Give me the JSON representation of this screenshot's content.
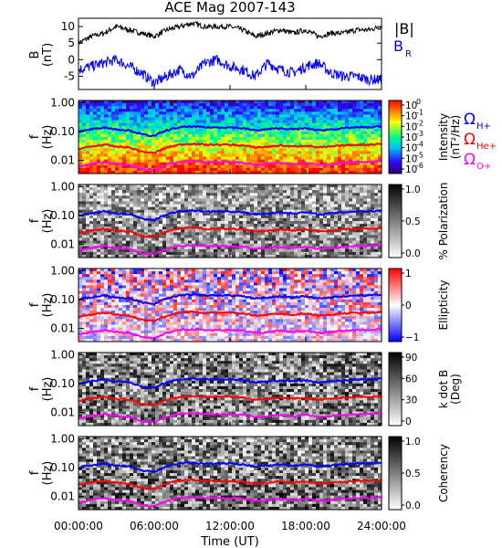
{
  "title": "ACE Mag 2007-143",
  "x_axis": {
    "label": "Time (UT)",
    "ticks": [
      "00:00:00",
      "06:00:00",
      "12:00:00",
      "18:00:00",
      "24:00:00"
    ],
    "range_hours": [
      0,
      24
    ]
  },
  "line_panel": {
    "ylabel": "B",
    "yunit": "(nT)",
    "ylim": [
      -9,
      12.5
    ],
    "yticks": [
      "10",
      "5",
      "0",
      "-5"
    ],
    "legend": {
      "b_mag": "|B|",
      "b_r_main": "B",
      "b_r_sub": "R"
    },
    "colors": {
      "b_mag": "#000000",
      "b_r": "#0000ff"
    }
  },
  "spectro_panels": [
    {
      "ylabel": "f",
      "yunit": "(Hz)",
      "yticks": [
        "1.00",
        "0.10",
        "0.01"
      ],
      "cbar": {
        "label": "Intensity",
        "unit": "(nT²/Hz)",
        "ticks": [
          "10",
          "10",
          "10",
          "10",
          "10",
          "10",
          "10"
        ],
        "tick_exps": [
          "0",
          "-1",
          "-2",
          "-3",
          "-4",
          "-5",
          "-6"
        ],
        "colormap": "rainbow"
      },
      "legend": [
        {
          "main": "Ω",
          "sub": "H+",
          "color": "#0000ff"
        },
        {
          "main": "Ω",
          "sub": "He+",
          "color": "#ff0000"
        },
        {
          "main": "Ω",
          "sub": "O+",
          "color": "#ff00ff"
        }
      ]
    },
    {
      "ylabel": "f",
      "yunit": "(Hz)",
      "yticks": [
        "1.00",
        "0.10",
        "0.01"
      ],
      "cbar": {
        "label": "% Polarization",
        "unit": "",
        "ticks": [
          "1.0",
          "0.5",
          "0.0"
        ],
        "colormap": "gray"
      }
    },
    {
      "ylabel": "f",
      "yunit": "(Hz)",
      "yticks": [
        "1.00",
        "0.10",
        "0.01"
      ],
      "cbar": {
        "label": "Ellipticity",
        "unit": "",
        "ticks": [
          "1",
          "0",
          "−1"
        ],
        "colormap": "bwr"
      }
    },
    {
      "ylabel": "f",
      "yunit": "(Hz)",
      "yticks": [
        "1.00",
        "0.10",
        "0.01"
      ],
      "cbar": {
        "label": "k dot B",
        "unit": "(Deg)",
        "ticks": [
          "90",
          "60",
          "30",
          "0"
        ],
        "colormap": "gray"
      }
    },
    {
      "ylabel": "f",
      "yunit": "(Hz)",
      "yticks": [
        "1.00",
        "0.10",
        "0.01"
      ],
      "cbar": {
        "label": "Coherency",
        "unit": "",
        "ticks": [
          "1.0",
          "0.5",
          "0.0"
        ],
        "colormap": "gray"
      }
    }
  ],
  "chart_data": {
    "type": "line",
    "title": "ACE Mag 2007-143",
    "xlabel": "Time (UT)",
    "x_hours": [
      0,
      1,
      2,
      3,
      4,
      5,
      6,
      7,
      8,
      9,
      10,
      11,
      12,
      13,
      14,
      15,
      16,
      17,
      18,
      19,
      20,
      21,
      22,
      23,
      24
    ],
    "series": [
      {
        "name": "|B|",
        "values": [
          5,
          7,
          8,
          10,
          9,
          8,
          7,
          9,
          10,
          11,
          10,
          10,
          10,
          9,
          7,
          8,
          9,
          8,
          9,
          7,
          8,
          8,
          9,
          9,
          10
        ]
      },
      {
        "name": "B_R",
        "values": [
          -3,
          -2,
          -1,
          0,
          -2,
          -4,
          -7,
          -5,
          -3,
          -5,
          -1,
          0,
          -2,
          -3,
          -5,
          -1,
          -3,
          -4,
          -2,
          -1,
          -4,
          -5,
          -5,
          -6,
          -6
        ]
      }
    ],
    "ylim": [
      -9,
      12.5
    ],
    "gyrofrequency_lines_hz": {
      "x_hours": [
        0,
        1,
        2,
        3,
        4,
        5,
        6,
        7,
        8,
        9,
        10,
        11,
        12,
        13,
        14,
        15,
        16,
        17,
        18,
        19,
        20,
        21,
        22,
        23,
        24
      ],
      "H+": [
        0.1,
        0.12,
        0.14,
        0.12,
        0.11,
        0.08,
        0.07,
        0.11,
        0.14,
        0.15,
        0.14,
        0.14,
        0.14,
        0.13,
        0.11,
        0.12,
        0.13,
        0.12,
        0.13,
        0.11,
        0.12,
        0.13,
        0.14,
        0.14,
        0.15
      ],
      "He+": [
        0.025,
        0.03,
        0.035,
        0.03,
        0.028,
        0.02,
        0.018,
        0.028,
        0.035,
        0.038,
        0.035,
        0.035,
        0.035,
        0.033,
        0.028,
        0.03,
        0.033,
        0.03,
        0.033,
        0.028,
        0.03,
        0.033,
        0.035,
        0.035,
        0.038
      ],
      "O+": [
        0.006,
        0.0075,
        0.0088,
        0.0075,
        0.007,
        0.005,
        0.0045,
        0.007,
        0.0088,
        0.0095,
        0.0088,
        0.0088,
        0.0088,
        0.0083,
        0.007,
        0.0075,
        0.0083,
        0.0075,
        0.0083,
        0.007,
        0.0075,
        0.0083,
        0.0088,
        0.0088,
        0.0095
      ]
    }
  }
}
